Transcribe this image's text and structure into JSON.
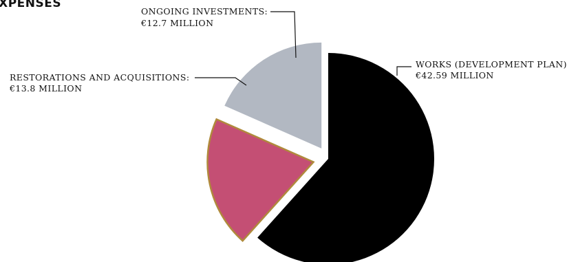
{
  "chart_data": {
    "type": "pie",
    "title": "EXPENSES",
    "slices": [
      {
        "label": "WORKS (DEVELOPMENT PLAN):",
        "value_label": "€42.59 MILLION",
        "value": 42.59,
        "color": "#000000",
        "stroke": "#000000"
      },
      {
        "label": "RESTORATIONS AND ACQUISITIONS:",
        "value_label": "€13.8 MILLION",
        "value": 13.8,
        "color": "#c44f74",
        "stroke": "#b08a3c"
      },
      {
        "label": "ONGOING INVESTMENTS:",
        "value_label": "€12.7 MILLION",
        "value": 12.7,
        "color": "#b2b8c2",
        "stroke": "#b2b8c2"
      }
    ]
  }
}
